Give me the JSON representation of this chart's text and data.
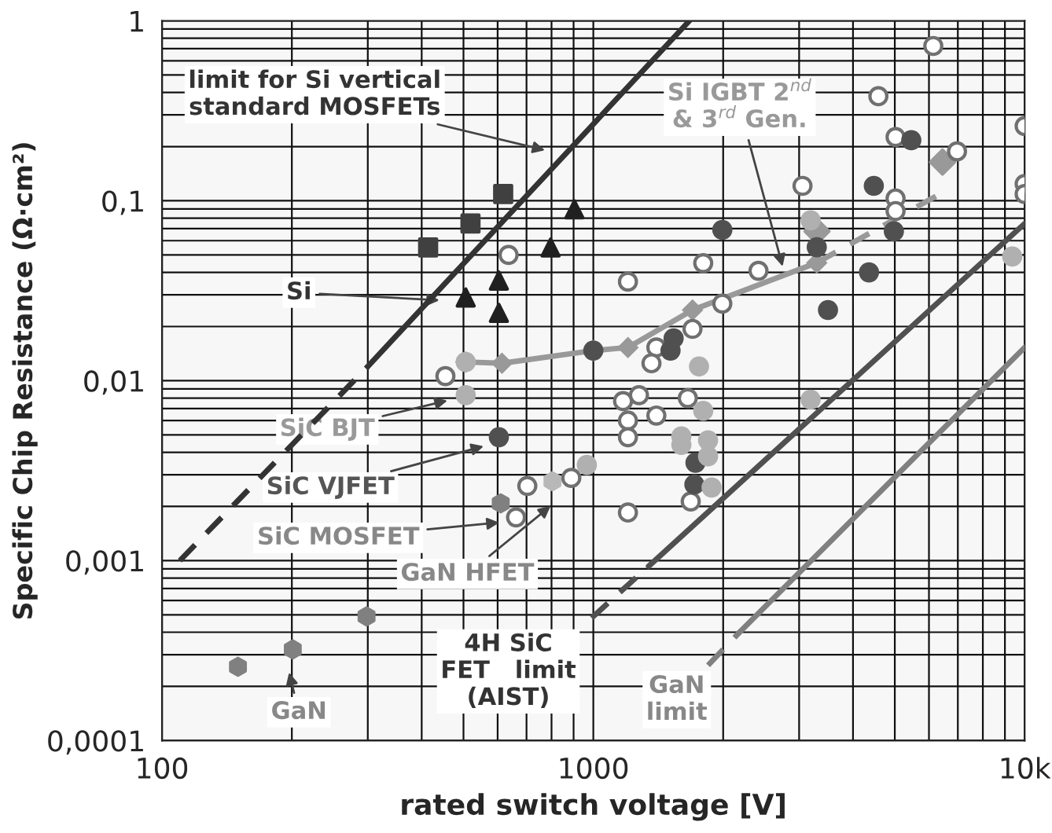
{
  "chart_data": {
    "type": "scatter",
    "xlabel": "rated switch voltage [V]",
    "ylabel": "Specific Chip Resistance (Ω·cm²)",
    "log": "xy",
    "grid": true,
    "legend": false,
    "xlim": [
      100,
      10000
    ],
    "xticks": [
      100,
      1000,
      {
        "value": 10000,
        "label": "10k"
      }
    ],
    "ylim": [
      0.0001,
      1
    ],
    "yticks": [
      {
        "value": 0.0001,
        "label": "0,0001"
      },
      {
        "value": 0.001,
        "label": "0,001"
      },
      {
        "value": 0.01,
        "label": "0,01"
      },
      {
        "value": 0.1,
        "label": "0,1"
      },
      1
    ],
    "series": [
      {
        "type": "line",
        "line_style": "dashed",
        "marker": "none",
        "color": "#333333",
        "x": [
          110,
          300
        ],
        "values": [
          0.001,
          0.012
        ]
      },
      {
        "type": "line",
        "line_style": "solid",
        "marker": "none",
        "color": "#333333",
        "x": [
          300,
          1670
        ],
        "values": [
          0.012,
          1
        ]
      },
      {
        "type": "line",
        "line_style": "dashed",
        "marker": "none",
        "color": "#505050",
        "x": [
          991,
          1343
        ],
        "values": [
          0.00048,
          0.00093
        ]
      },
      {
        "type": "line",
        "line_style": "solid",
        "marker": "none",
        "color": "#505050",
        "x": [
          1343,
          10000
        ],
        "values": [
          0.00093,
          0.0747
        ]
      },
      {
        "type": "line",
        "line_style": "dashed",
        "marker": "none",
        "color": "#808080",
        "x": [
          1845,
          2183
        ],
        "values": [
          0.000262,
          0.0004
        ]
      },
      {
        "type": "line",
        "line_style": "solid",
        "marker": "none",
        "color": "#808080",
        "x": [
          2183,
          10000
        ],
        "values": [
          0.0004,
          0.0153
        ]
      },
      {
        "type": "line",
        "line_style": "solid",
        "marker": "diamond",
        "color": "#999999",
        "x": [
          506,
          614,
          1000,
          1203,
          1698,
          3296
        ],
        "values": [
          0.0127,
          0.0125,
          0.0147,
          0.0153,
          0.0247,
          0.0452
        ]
      },
      {
        "type": "line",
        "line_style": "dashed",
        "marker": "none",
        "color": "#999999",
        "x": [
          3296,
          6357
        ],
        "values": [
          0.0452,
          0.109
        ]
      },
      {
        "type": "scatter",
        "marker": "diamond",
        "color": "#999999",
        "x": [
          6450,
          3300
        ],
        "values": [
          0.164,
          0.0676
        ]
      },
      {
        "type": "scatter",
        "marker": "square",
        "color": "#404040",
        "x": [
          414,
          519,
          618
        ],
        "values": [
          0.055,
          0.0747,
          0.109
        ]
      },
      {
        "type": "scatter",
        "marker": "triangle",
        "color": "#202020",
        "x": [
          506,
          604,
          604,
          796,
          904
        ],
        "values": [
          0.029,
          0.036,
          0.0238,
          0.055,
          0.0895
        ]
      },
      {
        "type": "scatter",
        "marker": "circle",
        "color": "#ffffff",
        "x": [
          636,
          454,
          6140,
          4580,
          5020,
          10000,
          6970,
          3055,
          5020,
          5020,
          10000,
          10000,
          1798,
          2415,
          1203,
          1991,
          1698,
          1400,
          1364,
          1172,
          1276,
          1203,
          1203,
          1400,
          1656,
          703,
          662,
          889,
          1203,
          1682
        ],
        "values": [
          0.05,
          0.0106,
          0.725,
          0.381,
          0.226,
          0.26,
          0.188,
          0.121,
          0.103,
          0.0877,
          0.124,
          0.109,
          0.045,
          0.0408,
          0.0355,
          0.0268,
          0.0194,
          0.0153,
          0.0125,
          0.0077,
          0.0083,
          0.006,
          0.00485,
          0.0064,
          0.008,
          0.0026,
          0.00174,
          0.00288,
          0.00185,
          0.00213
        ]
      },
      {
        "type": "scatter",
        "marker": "circle",
        "color": "#505050",
        "x": [
          604,
          1000,
          1991,
          5460,
          4470,
          4975,
          3296,
          4356,
          3500,
          1535,
          1510,
          1725,
          1715
        ],
        "values": [
          0.00485,
          0.0147,
          0.0689,
          0.217,
          0.121,
          0.0676,
          0.0552,
          0.04,
          0.0247,
          0.0172,
          0.0147,
          0.0035,
          0.00265
        ]
      },
      {
        "type": "scatter",
        "marker": "circle",
        "color": "#b0b0b0",
        "x": [
          506,
          506,
          966,
          3190,
          1758,
          9360,
          3190,
          1798,
          1600,
          1600,
          1845,
          1845,
          1880
        ],
        "values": [
          0.0083,
          0.0127,
          0.0034,
          0.0778,
          0.012,
          0.049,
          0.00785,
          0.0068,
          0.0049,
          0.0044,
          0.00466,
          0.0038,
          0.00255
        ]
      },
      {
        "type": "scatter",
        "color": "#b8b8b8",
        "x": [
          804
        ],
        "values": [
          0.00276
        ]
      },
      {
        "type": "scatter",
        "color": "#808080",
        "x": [
          610,
          150,
          201,
          298
        ],
        "values": [
          0.00208,
          0.000257,
          0.000321,
          0.00049
        ]
      }
    ],
    "annotations": [
      "limit for Si vertical\nstandard MOSFETs",
      "Si",
      "Si IGBT 2$^{nd}$\n& 3$^{rd}$ Gen.",
      "SiC BJT",
      "SiC VJFET",
      "SiC MOSFET",
      "GaN HFET",
      "4H SiC\nFET   limit\n(AIST)",
      "GaN\nlimit",
      "GaN"
    ]
  }
}
